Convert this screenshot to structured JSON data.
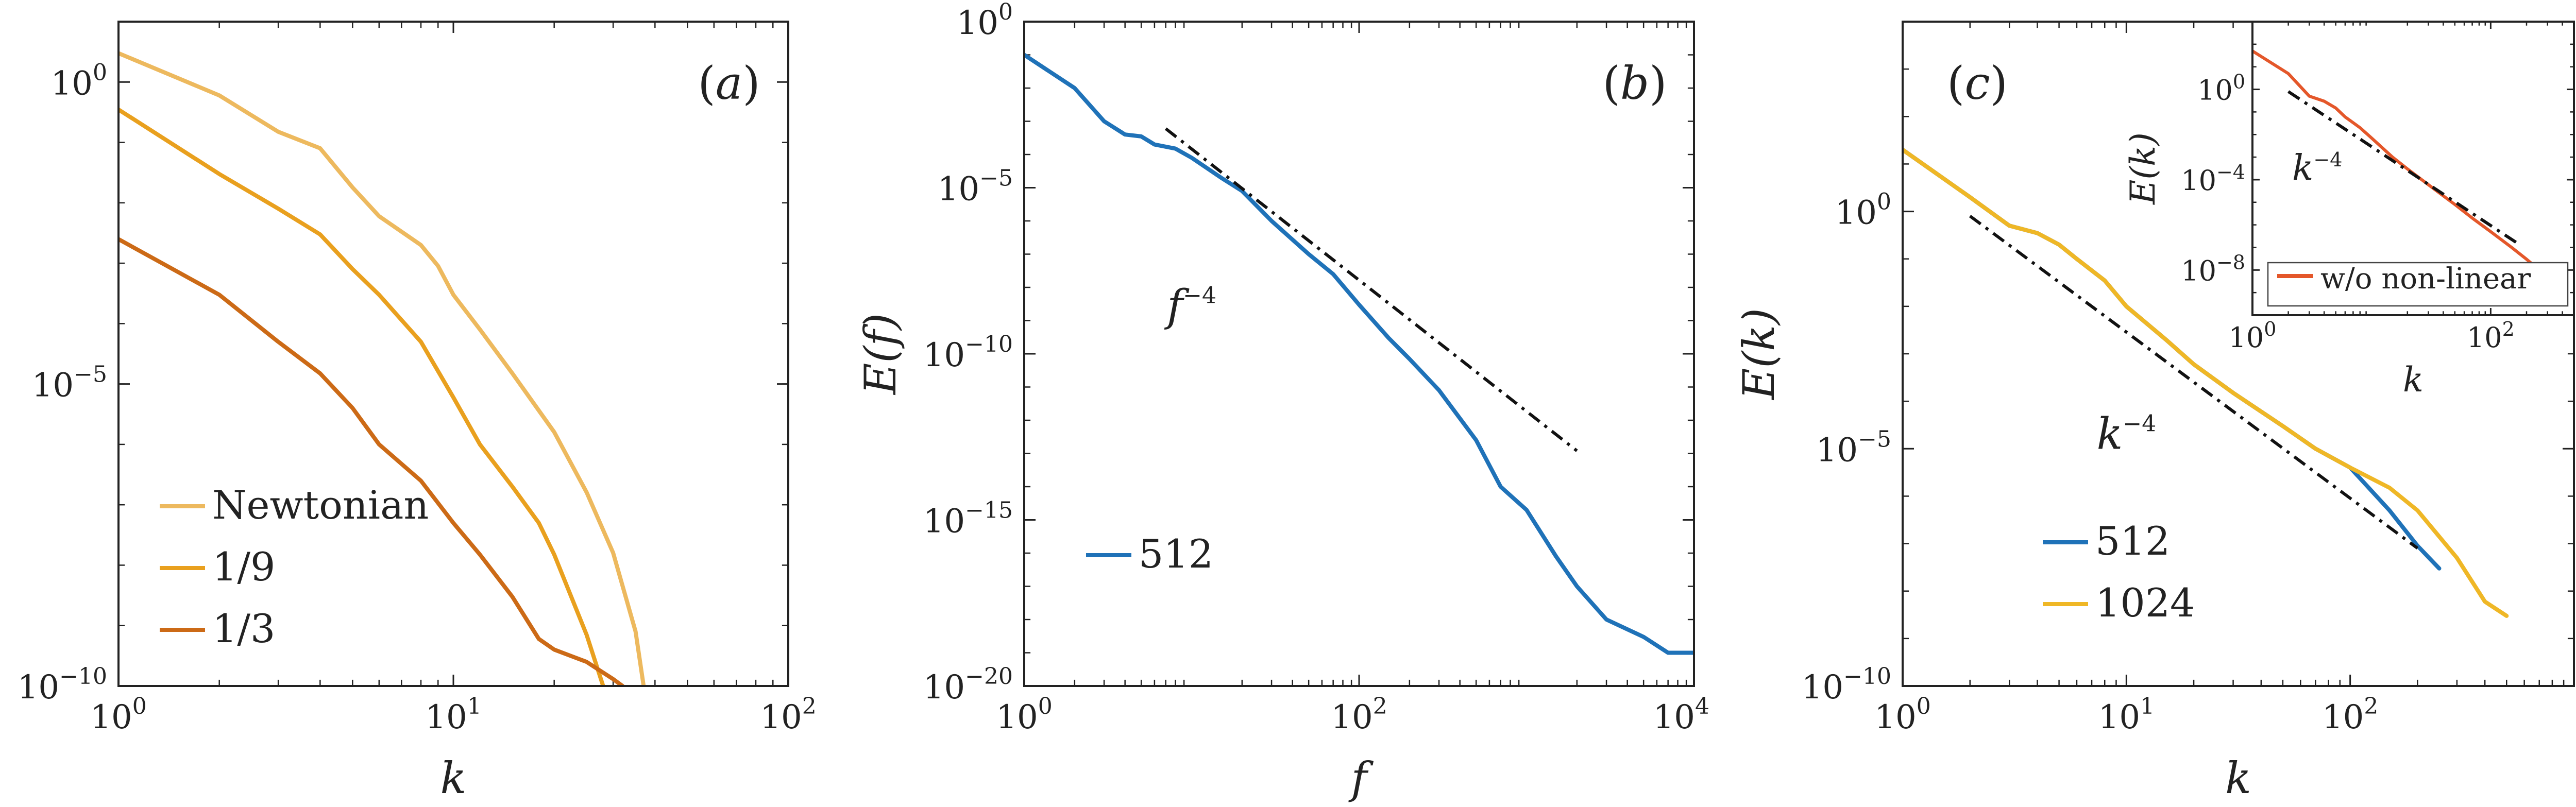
{
  "colors": {
    "newtonian": "#EDB95E",
    "ratio_1_9": "#E9A01E",
    "ratio_1_3": "#CC6A16",
    "blue": "#1F72B8",
    "yellow": "#EFB726",
    "red": "#E4572A",
    "fit": "#111111",
    "axis": "#222222"
  },
  "chart_data": [
    {
      "panel": "a",
      "type": "line",
      "title": "",
      "panel_label": "(a)",
      "xlabel": "k",
      "ylabel": "",
      "xscale": "log",
      "yscale": "log",
      "xlim": [
        1,
        100
      ],
      "ylim": [
        1e-10,
        10
      ],
      "xticks": [
        {
          "base": "10",
          "exp": "0"
        },
        {
          "base": "10",
          "exp": "1"
        },
        {
          "base": "10",
          "exp": "2"
        }
      ],
      "yticks": [
        {
          "base": "10",
          "exp": "0"
        },
        {
          "base": "10",
          "exp": "-5"
        },
        {
          "base": "10",
          "exp": "-10"
        }
      ],
      "legend": {
        "position": "bottom-left",
        "entries": [
          "Newtonian",
          "1/9",
          "1/3"
        ]
      },
      "series": [
        {
          "name": "Newtonian",
          "color": "newtonian",
          "x": [
            1,
            2,
            3,
            4,
            5,
            6,
            8,
            9,
            10,
            12,
            15,
            20,
            25,
            30,
            35,
            37
          ],
          "y": [
            3,
            0.6,
            0.15,
            0.08,
            0.018,
            0.006,
            0.002,
            0.0009,
            0.0003,
            8e-05,
            1.5e-05,
            1.6e-06,
            1.6e-07,
            1.6e-08,
            8e-10,
            1e-10
          ]
        },
        {
          "name": "1/9",
          "color": "ratio_1_9",
          "x": [
            1,
            2,
            3,
            4,
            5,
            6,
            8,
            10,
            12,
            15,
            18,
            20,
            25,
            28
          ],
          "y": [
            0.35,
            0.03,
            0.008,
            0.003,
            0.0008,
            0.0003,
            5e-05,
            6e-06,
            1e-06,
            2e-07,
            5e-08,
            1.5e-08,
            7e-10,
            1e-10
          ]
        },
        {
          "name": "1/3",
          "color": "ratio_1_3",
          "x": [
            1,
            2,
            3,
            4,
            5,
            6,
            8,
            10,
            12,
            15,
            18,
            20,
            25,
            30,
            32
          ],
          "y": [
            0.0025,
            0.0003,
            5e-05,
            1.5e-05,
            4e-06,
            1e-06,
            2.5e-07,
            5e-08,
            1.5e-08,
            3e-09,
            6e-10,
            4e-10,
            2.5e-10,
            1.3e-10,
            1e-10
          ]
        }
      ]
    },
    {
      "panel": "b",
      "type": "line",
      "title": "",
      "panel_label": "(b)",
      "xlabel": "f",
      "ylabel": "E(f)",
      "xscale": "log",
      "yscale": "log",
      "xlim": [
        1,
        10000
      ],
      "ylim": [
        1e-20,
        1
      ],
      "xticks": [
        {
          "base": "10",
          "exp": "0"
        },
        {
          "base": "10",
          "exp": "2"
        },
        {
          "base": "10",
          "exp": "4"
        }
      ],
      "yticks": [
        {
          "base": "10",
          "exp": "0"
        },
        {
          "base": "10",
          "exp": "-5"
        },
        {
          "base": "10",
          "exp": "-10"
        },
        {
          "base": "10",
          "exp": "-15"
        },
        {
          "base": "10",
          "exp": "-20"
        }
      ],
      "annotation": {
        "base": "f",
        "exp": "−4",
        "x": 10,
        "y": 1e-09
      },
      "legend": {
        "position": "lower-left",
        "entries": [
          "512"
        ]
      },
      "series": [
        {
          "name": "512",
          "color": "blue",
          "x": [
            1,
            2,
            3,
            4,
            5,
            6,
            8,
            10,
            15,
            20,
            30,
            50,
            70,
            100,
            150,
            200,
            300,
            500,
            700,
            1000,
            1500,
            2000,
            3000,
            5000,
            7000,
            10000
          ],
          "y": [
            0.1,
            0.01,
            0.001,
            0.0004,
            0.00035,
            0.0002,
            0.00015,
            8e-05,
            2e-05,
            8e-06,
            1e-06,
            1e-07,
            2.5e-08,
            3e-09,
            3e-10,
            7e-11,
            8e-12,
            2.5e-13,
            1e-14,
            2e-15,
            8e-17,
            1e-17,
            1e-18,
            3e-19,
            1e-19,
            1e-19
          ]
        },
        {
          "name": "fit",
          "color": "fit",
          "dash": "dashdot",
          "x": [
            7,
            2000
          ],
          "y": [
            0.0006,
            1.2e-13
          ]
        }
      ]
    },
    {
      "panel": "c",
      "type": "line",
      "title": "",
      "panel_label": "(c)",
      "xlabel": "k",
      "ylabel": "E(k)",
      "xscale": "log",
      "yscale": "log",
      "xlim": [
        1,
        1000
      ],
      "ylim": [
        1e-10,
        10000
      ],
      "xticks": [
        {
          "base": "10",
          "exp": "0"
        },
        {
          "base": "10",
          "exp": "1"
        },
        {
          "base": "10",
          "exp": "2"
        }
      ],
      "yticks": [
        {
          "base": "10",
          "exp": "0"
        },
        {
          "base": "10",
          "exp": "-5"
        },
        {
          "base": "10",
          "exp": "-10"
        }
      ],
      "annotation": {
        "base": "k",
        "exp": "−4",
        "x": 10,
        "y": 1e-05
      },
      "legend": {
        "position": "bottom-left",
        "entries": [
          "512",
          "1024"
        ]
      },
      "series": [
        {
          "name": "512",
          "color": "blue",
          "x": [
            1,
            2,
            3,
            4,
            5,
            6,
            8,
            10,
            15,
            20,
            30,
            50,
            70,
            100,
            150,
            200,
            250
          ],
          "y": [
            20,
            2,
            0.5,
            0.35,
            0.2,
            0.1,
            0.035,
            0.01,
            0.002,
            0.0006,
            0.00015,
            3e-05,
            1e-05,
            4e-06,
            5e-07,
            9e-08,
            3e-08
          ]
        },
        {
          "name": "1024",
          "color": "yellow",
          "x": [
            1,
            2,
            3,
            4,
            5,
            6,
            8,
            10,
            15,
            20,
            30,
            50,
            70,
            100,
            150,
            200,
            300,
            400,
            500
          ],
          "y": [
            20,
            2,
            0.5,
            0.35,
            0.2,
            0.1,
            0.035,
            0.01,
            0.002,
            0.0006,
            0.00015,
            3e-05,
            1e-05,
            4e-06,
            1.5e-06,
            5e-07,
            5e-08,
            6e-09,
            3e-09
          ]
        },
        {
          "name": "fit",
          "color": "fit",
          "dash": "dashdot",
          "x": [
            2,
            200
          ],
          "y": [
            0.8,
            8e-08
          ]
        }
      ]
    },
    {
      "panel": "c-inset",
      "type": "line",
      "title": "",
      "xlabel": "k",
      "ylabel": "E(k)",
      "xscale": "log",
      "yscale": "log",
      "xlim": [
        1,
        500
      ],
      "ylim": [
        1e-10,
        1000
      ],
      "xticks": [
        {
          "base": "10",
          "exp": "0"
        },
        {
          "base": "10",
          "exp": "2"
        }
      ],
      "yticks": [
        {
          "base": "10",
          "exp": "0"
        },
        {
          "base": "10",
          "exp": "-4"
        },
        {
          "base": "10",
          "exp": "-8"
        }
      ],
      "annotation": {
        "base": "k",
        "exp": "−4",
        "x": 3.5,
        "y": 0.0001
      },
      "legend": {
        "position": "bottom-right",
        "entries": [
          "w/o non-linear"
        ]
      },
      "series": [
        {
          "name": "w/o non-linear",
          "color": "red",
          "x": [
            1,
            2,
            3,
            4,
            5,
            6,
            8,
            10,
            15,
            20,
            30,
            50,
            70,
            100,
            150,
            200,
            300
          ],
          "y": [
            50,
            5,
            0.5,
            0.3,
            0.15,
            0.06,
            0.02,
            0.007,
            0.001,
            0.0003,
            6e-05,
            8e-06,
            2e-06,
            5e-07,
            1e-07,
            3e-08,
            5e-09
          ]
        },
        {
          "name": "fit",
          "color": "fit",
          "dash": "dashdot",
          "x": [
            2,
            180
          ],
          "y": [
            0.8,
            1.2e-07
          ]
        }
      ]
    }
  ]
}
